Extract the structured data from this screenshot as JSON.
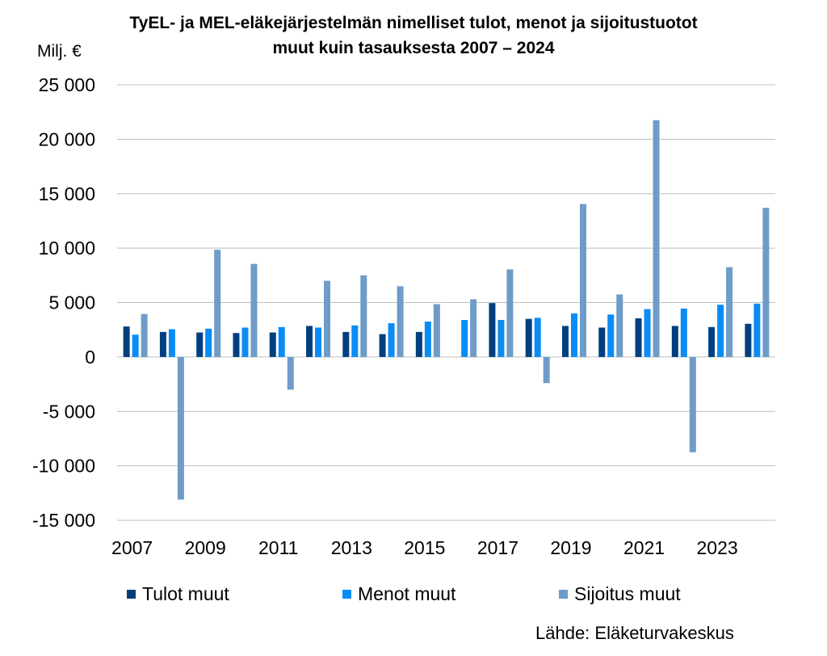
{
  "title_line1": "TyEL- ja MEL-eläkejärjestelmän nimelliset tulot, menot ja sijoitustuotot",
  "title_line2": "muut kuin tasauksesta 2007 – 2024",
  "unit_label": "Milj. €",
  "source": "Lähde: Eläketurvakeskus",
  "colors": {
    "tulot": "#003F7D",
    "menot": "#0A8CF5",
    "sijoitus": "#6F9BC8",
    "grid": "#BFBFBF"
  },
  "chart_data": {
    "type": "bar",
    "title": "TyEL- ja MEL-eläkejärjestelmän nimelliset tulot, menot ja sijoitustuotot muut kuin tasauksesta 2007 – 2024",
    "ylabel": "Milj. €",
    "ylim": [
      -15000,
      25000
    ],
    "yticks": [
      25000,
      20000,
      15000,
      10000,
      5000,
      0,
      -5000,
      -10000,
      -15000
    ],
    "ytick_labels": [
      "25 000",
      "20 000",
      "15 000",
      "10 000",
      "5 000",
      "0",
      "-5 000",
      "-10 000",
      "-15 000"
    ],
    "grid": true,
    "legend_position": "bottom",
    "categories": [
      "2007",
      "2008",
      "2009",
      "2010",
      "2011",
      "2012",
      "2013",
      "2014",
      "2015",
      "2016",
      "2017",
      "2018",
      "2019",
      "2020",
      "2021",
      "2022",
      "2023",
      "2024"
    ],
    "xtick_labels": [
      "2007",
      "",
      "2009",
      "",
      "2011",
      "",
      "2013",
      "",
      "2015",
      "",
      "2017",
      "",
      "2019",
      "",
      "2021",
      "",
      "2023",
      ""
    ],
    "series": [
      {
        "name": "Tulot muut",
        "color_key": "tulot",
        "values": [
          2800,
          2300,
          2250,
          2200,
          2250,
          2850,
          2300,
          2100,
          2300,
          0,
          4950,
          3500,
          2850,
          2700,
          3550,
          2850,
          2750,
          3050
        ]
      },
      {
        "name": "Menot muut",
        "color_key": "menot",
        "values": [
          2050,
          2550,
          2600,
          2700,
          2750,
          2700,
          2900,
          3100,
          3250,
          3400,
          3400,
          3600,
          4000,
          3900,
          4400,
          4450,
          4800,
          4900
        ]
      },
      {
        "name": "Sijoitus muut",
        "color_key": "sijoitus",
        "values": [
          3950,
          -13100,
          9850,
          8550,
          -3000,
          7000,
          7500,
          6500,
          4850,
          5300,
          8050,
          -2400,
          14050,
          5750,
          21750,
          -8750,
          8250,
          13700
        ]
      }
    ]
  }
}
